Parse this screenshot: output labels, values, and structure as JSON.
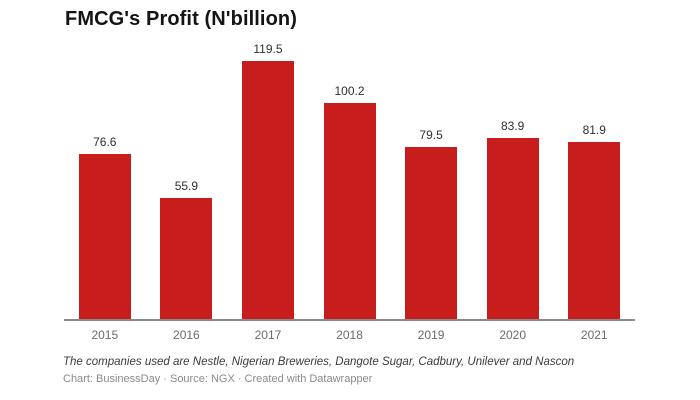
{
  "chart_data": {
    "type": "bar",
    "title": "FMCG's Profit (N'billion)",
    "categories": [
      "2015",
      "2016",
      "2017",
      "2018",
      "2019",
      "2020",
      "2021"
    ],
    "values": [
      76.6,
      55.9,
      119.5,
      100.2,
      79.5,
      83.9,
      81.9
    ],
    "xlabel": "",
    "ylabel": "",
    "ylim": [
      0,
      125
    ],
    "grid": false,
    "legend": false,
    "value_labels_shown": true,
    "colors": {
      "bar": "#c71e1d",
      "axis_line": "#8a8a8a",
      "value_label": "#303030",
      "tick_label": "#6b6b6b"
    }
  },
  "footer": {
    "note": "The companies used are Nestle, Nigerian Breweries, Dangote Sugar, Cadbury, Unilever and Nascon",
    "attribution": "Chart: BusinessDay · Source: NGX · Created with Datawrapper"
  }
}
